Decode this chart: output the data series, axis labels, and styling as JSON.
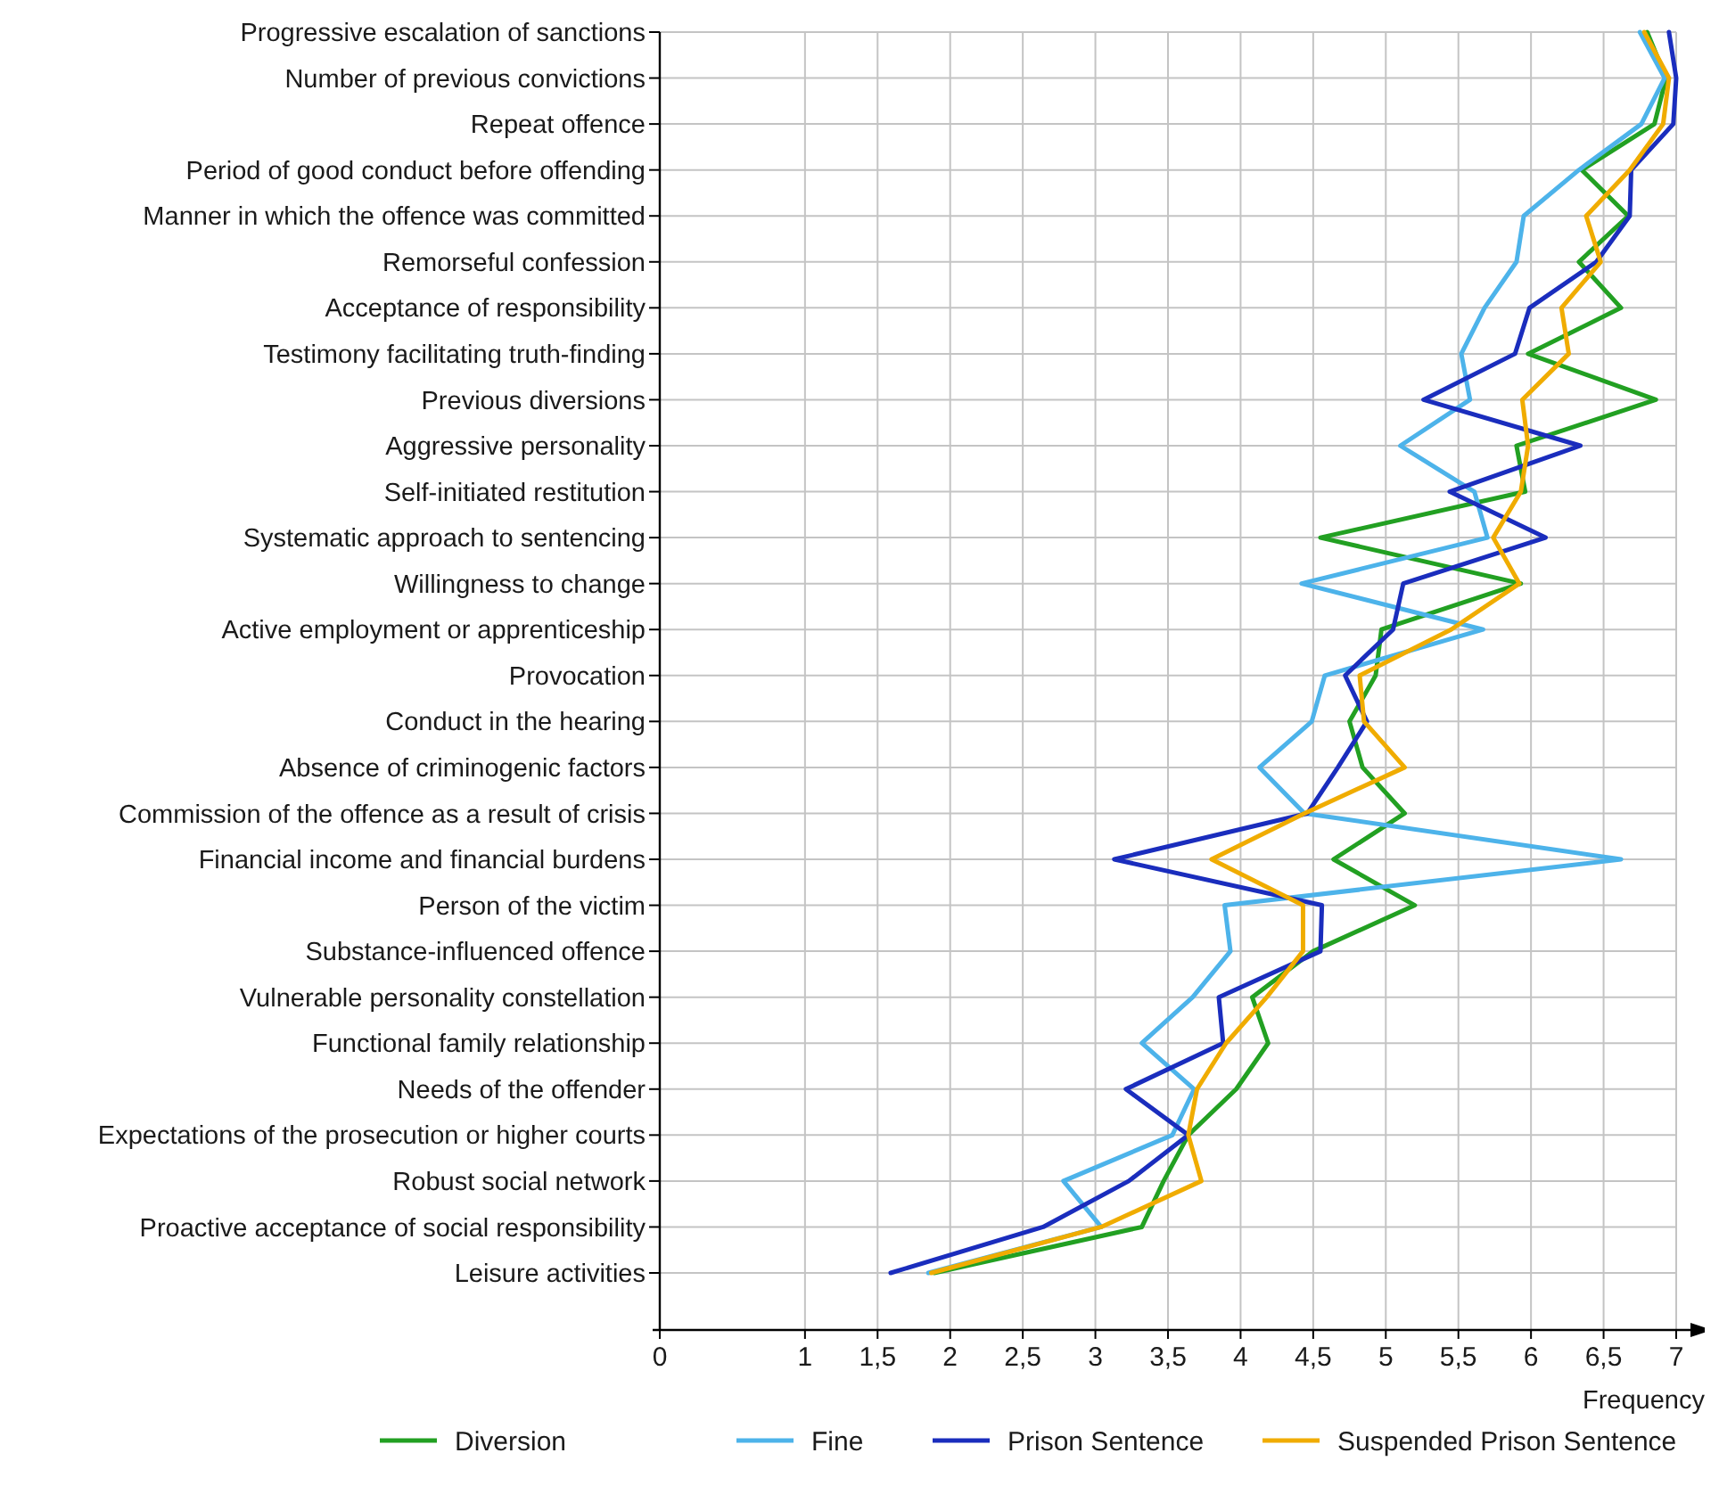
{
  "chart_data": {
    "type": "line",
    "orientation": "horizontal",
    "xlabel": "Frequency",
    "categories": [
      "Progressive escalation of sanctions",
      "Number of previous convictions",
      "Repeat offence",
      "Period of good conduct before offending",
      "Manner in which the offence was committed",
      "Remorseful confession",
      "Acceptance of responsibility",
      "Testimony facilitating truth-finding",
      "Previous diversions",
      "Aggressive personality",
      "Self-initiated restitution",
      "Systematic approach to sentencing",
      "Willingness to change",
      "Active employment or apprenticeship",
      "Provocation",
      "Conduct in the hearing",
      "Absence of criminogenic factors",
      "Commission of the offence as a result of crisis",
      "Financial income and financial burdens",
      "Person of the victim",
      "Substance-influenced offence",
      "Vulnerable personality constellation",
      "Functional family relationship",
      "Needs of the offender",
      "Expectations of the prosecution or higher courts",
      "Robust social network",
      "Proactive acceptance of social responsibility",
      "Leisure activities"
    ],
    "series": [
      {
        "name": "Diversion",
        "color": "#22a022",
        "values": [
          6.8,
          6.93,
          6.85,
          6.35,
          6.67,
          6.33,
          6.62,
          5.98,
          6.86,
          5.9,
          5.96,
          4.55,
          5.93,
          4.97,
          4.93,
          4.75,
          4.84,
          5.13,
          4.64,
          5.2,
          4.5,
          4.08,
          4.19,
          3.97,
          3.64,
          3.47,
          3.32,
          1.89
        ]
      },
      {
        "name": "Fine",
        "color": "#4db3ea",
        "values": [
          6.75,
          6.92,
          6.76,
          6.33,
          5.95,
          5.9,
          5.68,
          5.52,
          5.58,
          5.1,
          5.61,
          5.7,
          4.42,
          5.67,
          4.58,
          4.49,
          4.13,
          4.44,
          6.62,
          3.89,
          3.93,
          3.67,
          3.32,
          3.68,
          3.53,
          2.78,
          3.04,
          1.85
        ]
      },
      {
        "name": "Prison Sentence",
        "color": "#1a2dbd",
        "values": [
          6.95,
          7.0,
          6.98,
          6.69,
          6.68,
          6.45,
          5.99,
          5.89,
          5.26,
          6.34,
          5.44,
          6.1,
          5.12,
          5.05,
          4.72,
          4.87,
          4.67,
          4.46,
          3.13,
          4.56,
          4.55,
          3.85,
          3.88,
          3.21,
          3.64,
          3.23,
          2.64,
          1.59
        ]
      },
      {
        "name": "Suspended Prison Sentence",
        "color": "#f0ac00",
        "values": [
          6.78,
          6.95,
          6.91,
          6.68,
          6.38,
          6.48,
          6.21,
          6.26,
          5.94,
          5.98,
          5.93,
          5.74,
          5.92,
          5.45,
          4.82,
          4.85,
          5.13,
          4.44,
          3.8,
          4.43,
          4.43,
          4.18,
          3.9,
          3.7,
          3.64,
          3.73,
          3.04,
          1.87
        ]
      }
    ],
    "xlim": [
      0,
      7
    ],
    "xticks": [
      0,
      1,
      {
        "value": 1.5,
        "label": "1,5"
      },
      2,
      {
        "value": 2.5,
        "label": "2,5"
      },
      3,
      {
        "value": 3.5,
        "label": "3,5"
      },
      4,
      {
        "value": 4.5,
        "label": "4,5"
      },
      5,
      {
        "value": 5.5,
        "label": "5,5"
      },
      6,
      {
        "value": 6.5,
        "label": "6,5"
      },
      7
    ],
    "grid": true,
    "legend": "bottom",
    "marker": "none",
    "line_style": "solid"
  }
}
